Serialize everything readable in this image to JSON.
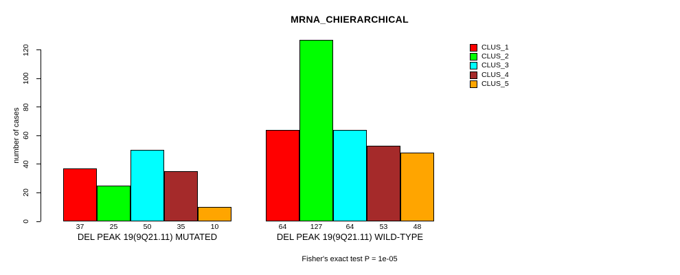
{
  "chart_data": {
    "type": "bar",
    "title": "MRNA_CHIERARCHICAL",
    "ylabel": "number of cases",
    "xlabel": "",
    "ylim": [
      0,
      127
    ],
    "yticks": [
      0,
      20,
      40,
      60,
      80,
      100,
      120
    ],
    "grid": false,
    "legend_position": "right",
    "categories": [
      "DEL PEAK 19(9Q21.11) MUTATED",
      "DEL PEAK 19(9Q21.11) WILD-TYPE"
    ],
    "series": [
      {
        "name": "CLUS_1",
        "color": "#FF0000",
        "values": [
          37,
          64
        ]
      },
      {
        "name": "CLUS_2",
        "color": "#00FF00",
        "values": [
          25,
          127
        ]
      },
      {
        "name": "CLUS_3",
        "color": "#00FFFF",
        "values": [
          50,
          64
        ]
      },
      {
        "name": "CLUS_4",
        "color": "#A52A2A",
        "values": [
          35,
          53
        ]
      },
      {
        "name": "CLUS_5",
        "color": "#FFA500",
        "values": [
          10,
          48
        ]
      }
    ],
    "bar_value_labels": [
      [
        37,
        25,
        50,
        35,
        10
      ],
      [
        64,
        127,
        64,
        53,
        48
      ]
    ],
    "annotation": "Fisher's exact test P = 1e-05",
    "axis_color": "#000000",
    "background_color": "#FFFFFF"
  }
}
